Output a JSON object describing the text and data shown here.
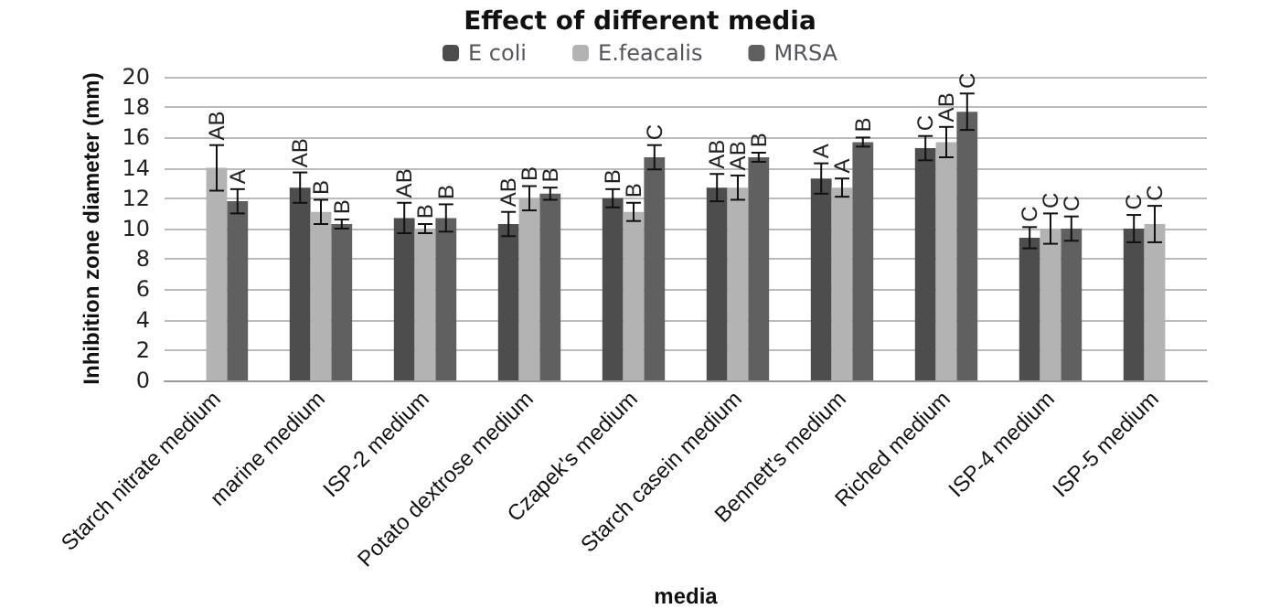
{
  "chart_data": {
    "type": "bar",
    "title": "Effect of different media",
    "xlabel": "media",
    "ylabel": "Inhibition zone diameter (mm)",
    "categories": [
      "Starch nitrate medium",
      "marine medium",
      "ISP-2 medium",
      "Potato dextrose medium",
      "Czapek's medium",
      "Starch casein medium",
      "Bennett's medium",
      "Riched medium",
      "ISP-4 medium",
      "ISP-5 medium"
    ],
    "series": [
      {
        "name": "E coli",
        "color": "#4d4d4d",
        "values": [
          null,
          12.7,
          10.7,
          10.3,
          12.0,
          12.7,
          13.3,
          15.3,
          9.4,
          10.0
        ],
        "errors": [
          null,
          1.0,
          1.0,
          0.8,
          0.6,
          0.9,
          1.0,
          0.8,
          0.7,
          0.9
        ],
        "value_labels": [
          null,
          "AB",
          "AB",
          "AB",
          "B",
          "AB",
          "A",
          "C",
          "C",
          "C"
        ]
      },
      {
        "name": "E.feacalis",
        "color": "#b3b3b3",
        "values": [
          14.0,
          11.1,
          10.0,
          12.0,
          11.1,
          12.7,
          12.7,
          15.7,
          10.0,
          10.3
        ],
        "errors": [
          1.5,
          0.8,
          0.3,
          0.8,
          0.6,
          0.8,
          0.6,
          1.0,
          1.0,
          1.2
        ],
        "value_labels": [
          "AB",
          "B",
          "B",
          "B",
          "B",
          "AB",
          "A",
          "AB",
          "C",
          "C"
        ]
      },
      {
        "name": "MRSA",
        "color": "#606060",
        "values": [
          11.8,
          10.3,
          10.7,
          12.3,
          14.7,
          14.7,
          15.7,
          17.7,
          10.0,
          null
        ],
        "errors": [
          0.8,
          0.3,
          0.9,
          0.4,
          0.8,
          0.3,
          0.3,
          1.2,
          0.8,
          null
        ],
        "value_labels": [
          "A",
          "B",
          "B",
          "B",
          "C",
          "B",
          "B",
          "C",
          "C",
          null
        ]
      }
    ],
    "ylim": [
      0,
      20
    ],
    "yticks": [
      0,
      2,
      4,
      6,
      8,
      10,
      12,
      14,
      16,
      18,
      20
    ],
    "grid": "y",
    "legend": "top"
  }
}
